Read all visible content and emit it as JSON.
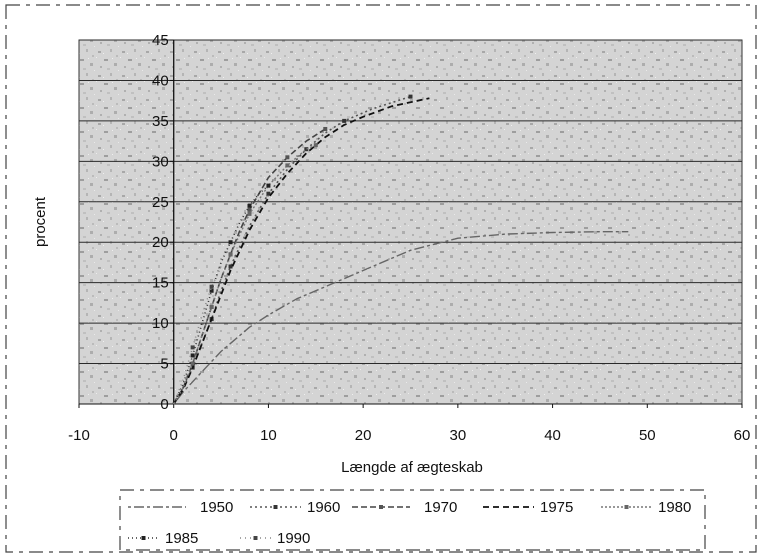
{
  "chart_data": {
    "type": "line",
    "xlabel": "Længde af ægteskab",
    "ylabel": "procent",
    "xlim": [
      -10,
      60
    ],
    "ylim": [
      0,
      45
    ],
    "x_ticks": [
      "-10",
      "0",
      "10",
      "20",
      "30",
      "40",
      "50",
      "60"
    ],
    "y_ticks": [
      "0",
      "5",
      "10",
      "15",
      "20",
      "25",
      "30",
      "35",
      "40",
      "45"
    ],
    "grid": "horizontal",
    "legend_position": "bottom",
    "series": [
      {
        "name": "1950",
        "color": "#666666",
        "x": [
          0,
          1,
          3,
          5,
          8,
          10,
          13,
          16,
          20,
          25,
          30,
          35,
          40,
          45,
          48
        ],
        "y": [
          0,
          1.5,
          4,
          6.5,
          9.5,
          11,
          13,
          14.5,
          16.5,
          19,
          20.5,
          21,
          21.2,
          21.3,
          21.3
        ]
      },
      {
        "name": "1960",
        "color": "#555555",
        "x": [
          0,
          1,
          2,
          3,
          4,
          5,
          6,
          8,
          10,
          12,
          14,
          16,
          18,
          21,
          25
        ],
        "y": [
          0,
          2,
          4.5,
          7.5,
          10.5,
          14,
          17,
          22,
          26,
          29,
          31.5,
          33.5,
          35,
          36.5,
          38
        ]
      },
      {
        "name": "1970",
        "color": "#444444",
        "x": [
          0,
          1,
          2,
          3,
          4,
          5,
          6,
          7,
          8,
          10,
          12,
          14,
          16
        ],
        "y": [
          0,
          2,
          5,
          8.5,
          12,
          15.5,
          18.5,
          21.5,
          24,
          28,
          30.5,
          32.5,
          34
        ]
      },
      {
        "name": "1975",
        "color": "#111111",
        "x": [
          0,
          1,
          2,
          3,
          4,
          5,
          6,
          7,
          8,
          10,
          12,
          14,
          16,
          18,
          20,
          23,
          27
        ],
        "y": [
          0,
          1.8,
          4.5,
          7.5,
          10.5,
          13.5,
          16.5,
          19,
          21.5,
          25.5,
          28.5,
          31,
          33,
          34.5,
          35.5,
          36.8,
          37.8
        ]
      },
      {
        "name": "1980",
        "color": "#777777",
        "x": [
          0,
          1,
          2,
          3,
          4,
          5,
          6,
          7,
          8,
          10,
          12,
          14,
          15
        ],
        "y": [
          0,
          2,
          5,
          8.5,
          12,
          15.5,
          18.5,
          21,
          23.5,
          27,
          29.5,
          31.5,
          32
        ]
      },
      {
        "name": "1985",
        "color": "#333333",
        "x": [
          0,
          1,
          2,
          3,
          4,
          5,
          6,
          7,
          8,
          9,
          10
        ],
        "y": [
          0,
          2.5,
          6,
          10,
          14,
          17.5,
          20,
          22.5,
          24.5,
          26,
          27
        ]
      },
      {
        "name": "1990",
        "color": "#888888",
        "x": [
          0,
          1,
          2,
          3,
          4,
          5
        ],
        "y": [
          0,
          3,
          7,
          11,
          14.5,
          17
        ]
      }
    ]
  }
}
